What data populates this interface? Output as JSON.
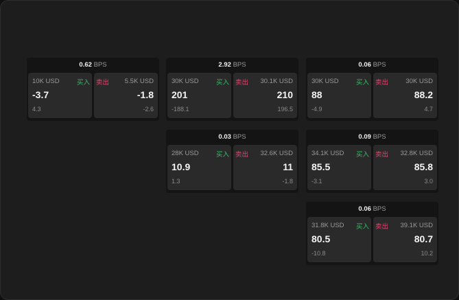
{
  "labels": {
    "bps": "BPS",
    "buy": "买入",
    "sell": "卖出"
  },
  "colors": {
    "buy": "#3fb86a",
    "sell": "#e5436f"
  },
  "panels": [
    {
      "bps": "0.62",
      "buy": {
        "amount": "10K USD",
        "price": "-3.7",
        "change": "4.3"
      },
      "sell": {
        "amount": "5.5K USD",
        "price": "-1.8",
        "change": "-2.6"
      }
    },
    {
      "bps": "2.92",
      "buy": {
        "amount": "30K USD",
        "price": "201",
        "change": "-188.1"
      },
      "sell": {
        "amount": "30.1K USD",
        "price": "210",
        "change": "196.5"
      }
    },
    {
      "bps": "0.06",
      "buy": {
        "amount": "30K USD",
        "price": "88",
        "change": "-4.9"
      },
      "sell": {
        "amount": "30K USD",
        "price": "88.2",
        "change": "4.7"
      }
    },
    {
      "bps": "0.03",
      "buy": {
        "amount": "28K USD",
        "price": "10.9",
        "change": "1.3"
      },
      "sell": {
        "amount": "32.6K USD",
        "price": "11",
        "change": "-1.8"
      }
    },
    {
      "bps": "0.09",
      "buy": {
        "amount": "34.1K USD",
        "price": "85.5",
        "change": "-3.1"
      },
      "sell": {
        "amount": "32.8K USD",
        "price": "85.8",
        "change": "3.0"
      }
    },
    {
      "bps": "0.06",
      "buy": {
        "amount": "31.8K USD",
        "price": "80.5",
        "change": "-10.8"
      },
      "sell": {
        "amount": "39.1K USD",
        "price": "80.7",
        "change": "10.2"
      }
    }
  ]
}
